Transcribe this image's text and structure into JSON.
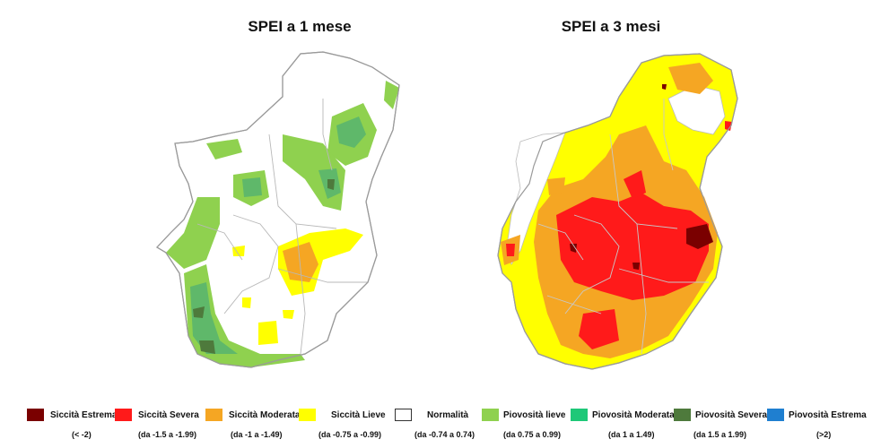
{
  "maps": {
    "left_title": "SPEI a 1 mese",
    "right_title": "SPEI a 3 mesi"
  },
  "legend": [
    {
      "label": "Siccità Estrema",
      "range": "(< -2)",
      "color": "#7a0000"
    },
    {
      "label": "Siccità Severa",
      "range": "(da -1.5 a -1.99)",
      "color": "#ff1a1a"
    },
    {
      "label": "Siccità Moderata",
      "range": "(da -1 a -1.49)",
      "color": "#f5a623"
    },
    {
      "label": "Siccità Lieve",
      "range": "(da -0.75 a -0.99)",
      "color": "#ffff00"
    },
    {
      "label": "Normalità",
      "range": "(da -0.74 a 0.74)",
      "color": "#ffffff"
    },
    {
      "label": "Piovosità lieve",
      "range": "(da 0.75 a 0.99)",
      "color": "#8fd14f"
    },
    {
      "label": "Piovosità Moderata",
      "range": "(da 1 a 1.49)",
      "color": "#1ec878"
    },
    {
      "label": "Piovosità Severa",
      "range": "(da 1.5 a 1.99)",
      "color": "#4e7a3c"
    },
    {
      "label": "Piovosità Estrema",
      "range": "(>2)",
      "color": "#1f7fd0"
    }
  ]
}
